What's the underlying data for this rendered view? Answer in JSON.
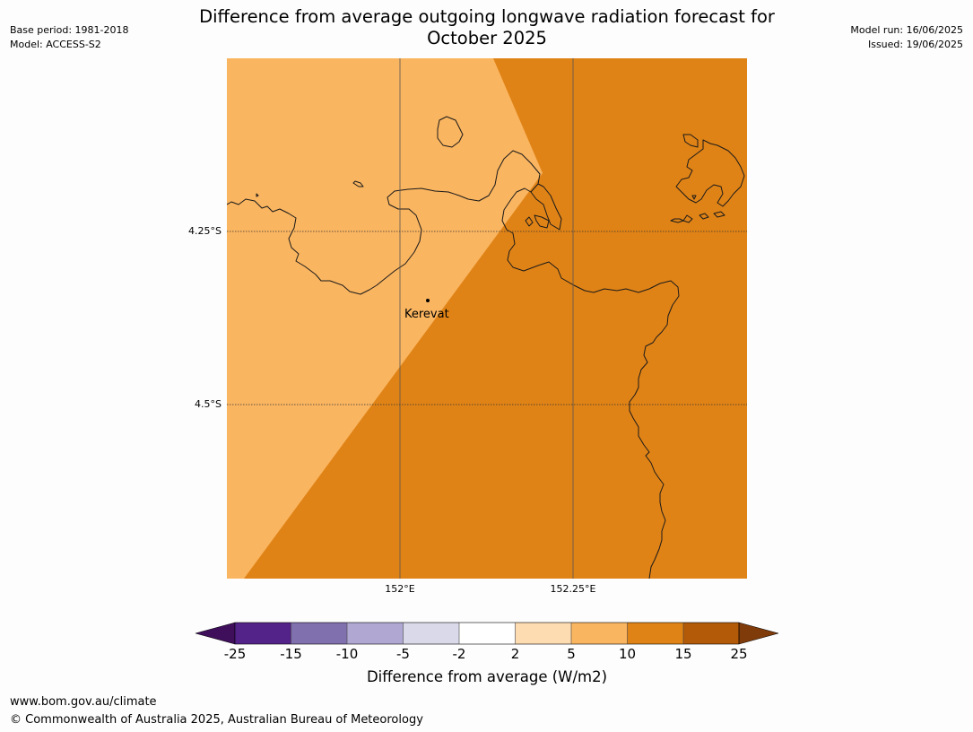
{
  "title_line1": "Difference from average outgoing longwave radiation forecast for",
  "title_line2": "October 2025",
  "meta": {
    "base_period": "Base period: 1981-2018",
    "model": "Model: ACCESS-S2",
    "model_run": "Model run: 16/06/2025",
    "issued": "Issued: 19/06/2025"
  },
  "map": {
    "lat_labels": [
      "4.25°S",
      "4.5°S"
    ],
    "lon_labels": [
      "152°E",
      "152.25°E"
    ],
    "place_label": "Kerevat",
    "colors": {
      "light_orange": "#fab560",
      "dark_orange": "#e08316",
      "coastline": "#1a1a1a"
    }
  },
  "colorbar": {
    "label": "Difference from average (W/m2)",
    "ticks": [
      "-25",
      "-15",
      "-10",
      "-5",
      "-2",
      "2",
      "5",
      "10",
      "15",
      "25"
    ],
    "colors": [
      "#3f0f5b",
      "#54238a",
      "#8070ae",
      "#b0a8d2",
      "#d9d9ea",
      "#ffffff",
      "#fddcb1",
      "#fab560",
      "#e08316",
      "#b35a08",
      "#7f3b0a"
    ]
  },
  "footer": {
    "url": "www.bom.gov.au/climate",
    "copyright": "© Commonwealth of Australia 2025, Australian Bureau of Meteorology"
  }
}
